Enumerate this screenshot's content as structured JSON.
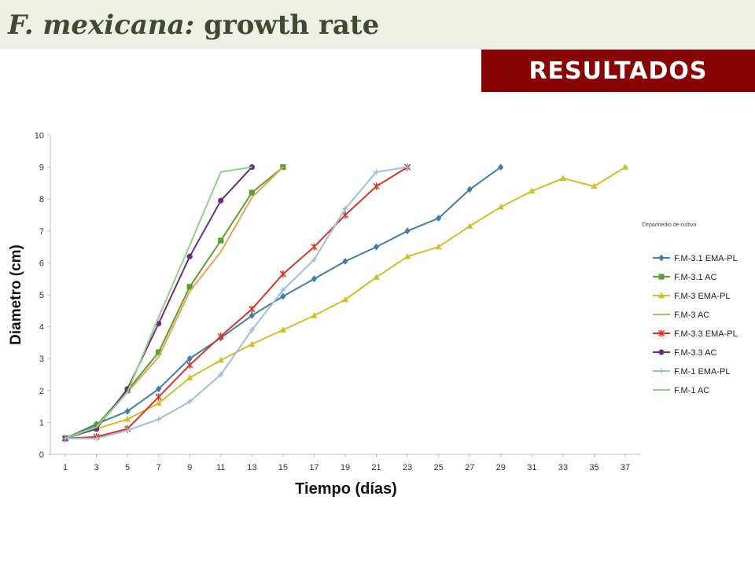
{
  "header": {
    "title_italic": "F. mexicana:",
    "title_rest": " growth rate",
    "badge": "RESULTADOS"
  },
  "colors": {
    "title_bar_bg": "#eef0e6",
    "title_text": "#3f4a31",
    "badge_bg": "#870505"
  },
  "chart_data": {
    "type": "line",
    "xlabel": "Tiempo (días)",
    "ylabel": "Diametro (cm)",
    "ylim": [
      0,
      10
    ],
    "yticks": [
      0,
      1,
      2,
      3,
      4,
      5,
      6,
      7,
      8,
      9,
      10
    ],
    "categories": [
      1,
      3,
      5,
      7,
      9,
      11,
      13,
      15,
      17,
      19,
      21,
      23,
      25,
      27,
      29,
      31,
      33,
      35,
      37
    ],
    "legend_title": "Cepa/medio de cultivo",
    "legend_position": "right",
    "grid": false,
    "series": [
      {
        "name": "F.M-3.1 EMA-PL",
        "color": "#3d7fa8",
        "marker": "diamond",
        "x": [
          1,
          3,
          5,
          7,
          9,
          11,
          13,
          15,
          17,
          19,
          21,
          23,
          25,
          27,
          29
        ],
        "y": [
          0.5,
          0.95,
          1.35,
          2.05,
          3.0,
          3.65,
          4.35,
          4.95,
          5.5,
          6.05,
          6.5,
          7.0,
          7.4,
          8.3,
          9.0
        ]
      },
      {
        "name": "F.M-3.1 AC",
        "color": "#5aa02c",
        "marker": "square",
        "x": [
          1,
          3,
          5,
          7,
          9,
          11,
          13,
          15
        ],
        "y": [
          0.5,
          0.9,
          2.0,
          3.2,
          5.25,
          6.7,
          8.2,
          9.0
        ]
      },
      {
        "name": "F.M-3 EMA-PL",
        "color": "#d4bd28",
        "marker": "triangle",
        "x": [
          1,
          3,
          5,
          7,
          9,
          11,
          13,
          15,
          17,
          19,
          21,
          23,
          25,
          27,
          29,
          31,
          33,
          35,
          37
        ],
        "y": [
          0.5,
          0.8,
          1.1,
          1.6,
          2.4,
          2.95,
          3.45,
          3.9,
          4.35,
          4.85,
          5.55,
          6.2,
          6.5,
          7.15,
          7.75,
          8.25,
          8.65,
          8.4,
          9.0
        ]
      },
      {
        "name": "F.M-3 AC",
        "color": "#e8a35a",
        "marker": "none",
        "x": [
          1,
          3,
          5,
          7,
          9,
          11,
          13,
          15
        ],
        "y": [
          0.5,
          0.85,
          1.95,
          3.05,
          5.1,
          6.35,
          8.05,
          9.0
        ]
      },
      {
        "name": "F.M-3.3 EMA-PL",
        "color": "#d93527",
        "marker": "star",
        "x": [
          1,
          3,
          5,
          7,
          9,
          11,
          13,
          15,
          17,
          19,
          21,
          23
        ],
        "y": [
          0.5,
          0.55,
          0.8,
          1.8,
          2.8,
          3.7,
          4.55,
          5.65,
          6.5,
          7.5,
          8.4,
          9.0
        ]
      },
      {
        "name": "F.M-3.3 AC",
        "color": "#6b2d82",
        "marker": "circle",
        "x": [
          1,
          3,
          5,
          7,
          9,
          11,
          13
        ],
        "y": [
          0.5,
          0.8,
          2.05,
          4.1,
          6.2,
          7.95,
          9.0
        ]
      },
      {
        "name": "F.M-1 EMA-PL",
        "color": "#9cbfdc",
        "marker": "plus",
        "x": [
          1,
          3,
          5,
          7,
          9,
          11,
          13,
          15,
          17,
          19,
          21,
          23
        ],
        "y": [
          0.5,
          0.5,
          0.75,
          1.1,
          1.65,
          2.5,
          3.9,
          5.15,
          6.1,
          7.7,
          8.85,
          9.0
        ]
      },
      {
        "name": "F.M-1 AC",
        "color": "#8fd08a",
        "marker": "none",
        "x": [
          1,
          3,
          5,
          7,
          9,
          11,
          13
        ],
        "y": [
          0.5,
          0.85,
          1.95,
          4.3,
          6.55,
          8.85,
          9.0
        ]
      }
    ]
  }
}
